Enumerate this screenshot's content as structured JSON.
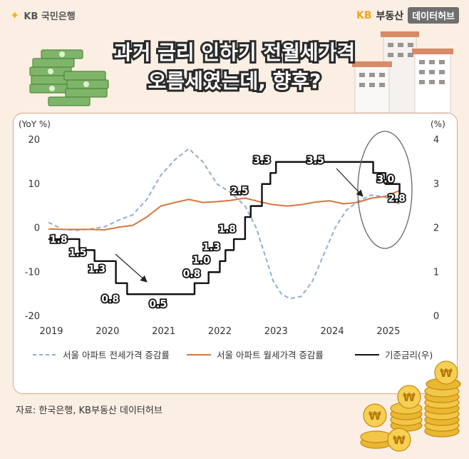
{
  "brand": {
    "left_logo": "KB 국민은행",
    "right_kb": "KB",
    "right_name": "부동산",
    "right_hub": "데이터허브"
  },
  "title": {
    "line1": "과거 금리 인하기 전월세가격",
    "line2": "오름세였는데, 향후?"
  },
  "source": "자료: 한국은행, KB부동산 데이터허브",
  "colors": {
    "jeonse": "#8fb0cf",
    "wolse": "#d8763f",
    "rate": "#111111",
    "background": "#fbeee3",
    "panel_border": "#d9a887"
  },
  "chart_data": {
    "type": "line",
    "left_axis": {
      "label": "(YoY %)",
      "ylim": [
        -20,
        20
      ],
      "ticks": [
        "20",
        "10",
        "0",
        "-10",
        "-20"
      ]
    },
    "right_axis": {
      "label": "(%)",
      "ylim": [
        0,
        4
      ],
      "ticks": [
        "4",
        "3",
        "2",
        "1",
        "0"
      ]
    },
    "x_axis": {
      "xlim": [
        2019.0,
        2025.75
      ],
      "ticks": [
        "2019",
        "2020",
        "2021",
        "2022",
        "2023",
        "2024",
        "2025"
      ]
    },
    "series": [
      {
        "name": "서울 아파트 전세가격 증감률",
        "axis": "left",
        "style": "dashed",
        "x": [
          2019.0,
          2019.25,
          2019.5,
          2019.75,
          2020.0,
          2020.25,
          2020.5,
          2020.75,
          2021.0,
          2021.25,
          2021.5,
          2021.75,
          2022.0,
          2022.25,
          2022.5,
          2022.7,
          2022.9,
          2023.0,
          2023.15,
          2023.3,
          2023.5,
          2023.7,
          2023.9,
          2024.1,
          2024.3,
          2024.5,
          2024.75,
          2025.0,
          2025.25
        ],
        "values": [
          1.3,
          -0.3,
          -0.5,
          -0.2,
          0.3,
          1.8,
          3.0,
          6.5,
          12.0,
          15.5,
          18.0,
          15.0,
          10.0,
          8.0,
          5.0,
          0.0,
          -8.0,
          -12.0,
          -15.0,
          -16.0,
          -15.5,
          -12.0,
          -6.0,
          0.0,
          4.0,
          6.0,
          7.5,
          7.0,
          5.5
        ]
      },
      {
        "name": "서울 아파트 월세가격 증감률",
        "axis": "left",
        "style": "solid",
        "x": [
          2019.0,
          2019.25,
          2019.5,
          2019.75,
          2020.0,
          2020.25,
          2020.5,
          2020.75,
          2021.0,
          2021.25,
          2021.5,
          2021.75,
          2022.0,
          2022.25,
          2022.5,
          2022.75,
          2023.0,
          2023.25,
          2023.5,
          2023.75,
          2024.0,
          2024.25,
          2024.5,
          2024.75,
          2025.0,
          2025.25
        ],
        "values": [
          -0.2,
          -0.3,
          -0.3,
          -0.3,
          -0.4,
          0.2,
          0.6,
          2.5,
          5.0,
          5.8,
          6.5,
          5.8,
          6.0,
          6.3,
          6.8,
          6.0,
          5.3,
          5.0,
          5.3,
          5.9,
          6.2,
          5.5,
          5.8,
          6.8,
          7.2,
          8.5
        ]
      },
      {
        "name": "기준금리(우)",
        "axis": "right",
        "style": "step",
        "x": [
          2019.0,
          2019.55,
          2019.82,
          2020.2,
          2020.4,
          2021.6,
          2021.85,
          2022.05,
          2022.15,
          2022.3,
          2022.5,
          2022.6,
          2022.8,
          2022.95,
          2023.05,
          2024.5,
          2024.78,
          2025.0,
          2025.25
        ],
        "values": [
          1.75,
          1.5,
          1.25,
          0.75,
          0.5,
          0.75,
          1.0,
          1.25,
          1.5,
          1.75,
          2.25,
          2.5,
          3.0,
          3.25,
          3.5,
          3.5,
          3.25,
          3.0,
          2.75
        ]
      }
    ],
    "annotations": [
      {
        "text": "1.8",
        "x": 2019.18,
        "y": 1.75
      },
      {
        "text": "1.5",
        "x": 2019.52,
        "y": 1.45
      },
      {
        "text": "1.3",
        "x": 2019.86,
        "y": 1.08
      },
      {
        "text": "0.8",
        "x": 2020.1,
        "y": 0.4
      },
      {
        "text": "0.5",
        "x": 2020.95,
        "y": 0.28
      },
      {
        "text": "0.8",
        "x": 2021.55,
        "y": 0.97
      },
      {
        "text": "1.0",
        "x": 2021.72,
        "y": 1.28
      },
      {
        "text": "1.3",
        "x": 2021.9,
        "y": 1.58
      },
      {
        "text": "1.8",
        "x": 2022.18,
        "y": 1.98
      },
      {
        "text": "2.5",
        "x": 2022.4,
        "y": 2.85
      },
      {
        "text": "3.3",
        "x": 2022.8,
        "y": 3.55
      },
      {
        "text": "3.5",
        "x": 2023.75,
        "y": 3.55
      },
      {
        "text": "3.0",
        "x": 2025.0,
        "y": 3.12
      },
      {
        "text": "2.8",
        "x": 2025.2,
        "y": 2.68
      }
    ],
    "legend_position": "bottom",
    "grid": false
  }
}
